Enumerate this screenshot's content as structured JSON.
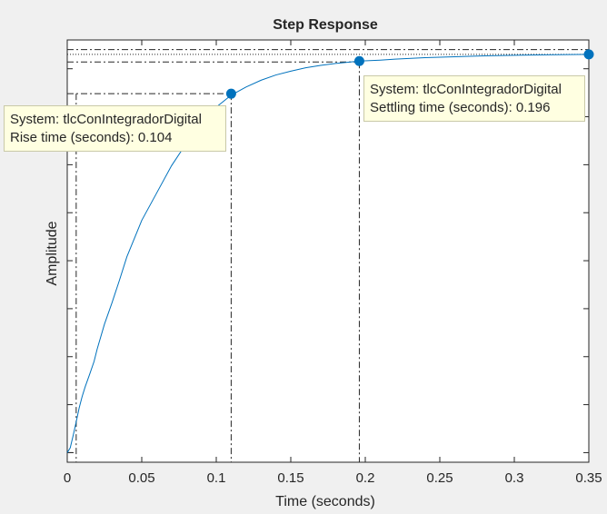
{
  "chart_data": {
    "type": "line",
    "title": "Step Response",
    "xlabel": "Time (seconds)",
    "ylabel": "Amplitude",
    "xlim": [
      0,
      0.35
    ],
    "ylim": [
      0.98,
      1.86
    ],
    "x_ticks": [
      0,
      0.05,
      0.1,
      0.15,
      0.2,
      0.25,
      0.3,
      0.35
    ],
    "x_tick_labels": [
      "0",
      "0.05",
      "0.1",
      "0.15",
      "0.2",
      "0.25",
      "0.3",
      "0.35"
    ],
    "y_ticks": [
      1.0,
      1.1,
      1.2,
      1.3,
      1.4,
      1.5,
      1.6,
      1.7,
      1.8
    ],
    "grid": false,
    "series": [
      {
        "color": "#0072bd",
        "x": [
          0,
          0.002,
          0.004,
          0.006,
          0.008,
          0.01,
          0.012,
          0.015,
          0.018,
          0.02,
          0.025,
          0.03,
          0.035,
          0.04,
          0.05,
          0.06,
          0.07,
          0.08,
          0.09,
          0.1,
          0.11,
          0.12,
          0.13,
          0.14,
          0.15,
          0.16,
          0.17,
          0.18,
          0.19,
          0.196,
          0.21,
          0.22,
          0.24,
          0.26,
          0.28,
          0.3,
          0.32,
          0.35
        ],
        "y": [
          1.0,
          1.01,
          1.036,
          1.064,
          1.093,
          1.117,
          1.137,
          1.163,
          1.19,
          1.215,
          1.268,
          1.312,
          1.359,
          1.408,
          1.484,
          1.541,
          1.598,
          1.645,
          1.685,
          1.72,
          1.745,
          1.762,
          1.776,
          1.787,
          1.795,
          1.802,
          1.807,
          1.811,
          1.814,
          1.816,
          1.818,
          1.82,
          1.823,
          1.825,
          1.827,
          1.828,
          1.829,
          1.83
        ]
      }
    ],
    "characteristic_lines": {
      "final_value": 1.83,
      "upper_band": 1.84,
      "lower_band": 1.814,
      "rise_low": 1.0,
      "rise_high": 1.748,
      "rise_start_time": 0.006,
      "rise_end_time": 0.11,
      "settling_time": 0.196
    },
    "markers": [
      {
        "name": "rise",
        "x": 0.11,
        "y": 1.748
      },
      {
        "name": "settling",
        "x": 0.196,
        "y": 1.816
      },
      {
        "name": "final",
        "x": 0.35,
        "y": 1.83
      }
    ],
    "annotations": {
      "rise": {
        "system": "System: tlcConIntegradorDigital",
        "metric": "Rise time (seconds): 0.104"
      },
      "settling": {
        "system": "System: tlcConIntegradorDigital",
        "metric": "Settling time (seconds): 0.196"
      }
    }
  },
  "colors": {
    "background": "#f0f0f0",
    "plot_area": "#ffffff",
    "line": "#0072bd",
    "axis": "#262626",
    "datatip_bg": "#ffffe1"
  }
}
